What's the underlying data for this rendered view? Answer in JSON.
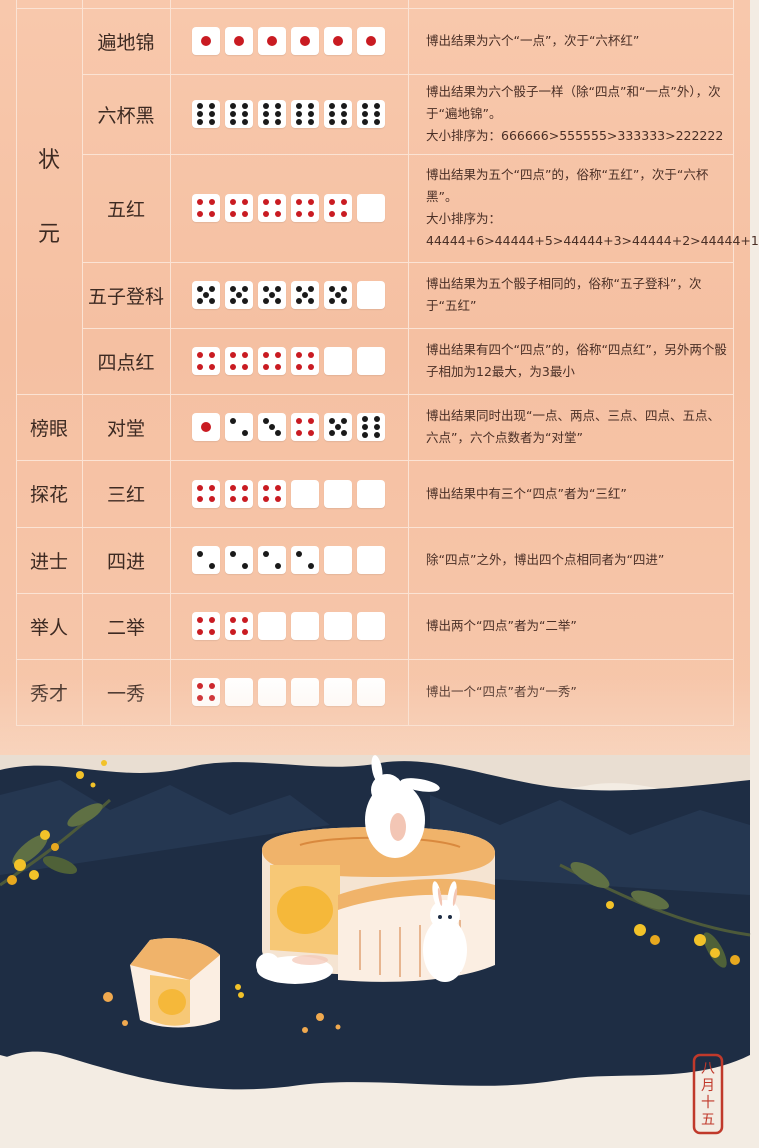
{
  "rows": [
    {
      "rank": "",
      "name": "遍地锦",
      "dice": [
        1,
        1,
        1,
        1,
        1,
        1
      ],
      "desc": [
        "博出结果为六个“一点”，次于“六杯红”"
      ]
    },
    {
      "rank": "",
      "name": "六杯黑",
      "dice": [
        6,
        6,
        6,
        6,
        6,
        6
      ],
      "desc": [
        "博出结果为六个骰子一样（除“四点”和“一点”外），次于“遍地锦”。",
        "大小排序为：666666>555555>333333>222222"
      ]
    },
    {
      "rank": "",
      "name": "五红",
      "dice": [
        4,
        4,
        4,
        4,
        4,
        0
      ],
      "desc": [
        "博出结果为五个“四点”的，俗称“五红”，次于“六杯黑”。",
        "大小排序为：",
        "44444+6>44444+5>44444+3>44444+2>44444+1"
      ]
    },
    {
      "rank": "",
      "name": "五子登科",
      "dice": [
        5,
        5,
        5,
        5,
        5,
        0
      ],
      "desc": [
        "博出结果为五个骰子相同的，俗称“五子登科”，次于“五红”"
      ]
    },
    {
      "rank": "",
      "name": "四点红",
      "dice": [
        4,
        4,
        4,
        4,
        0,
        0
      ],
      "desc": [
        "博出结果有四个“四点”的，俗称“四点红”，另外两个骰子相加为12最大，为3最小"
      ]
    },
    {
      "rank": "榜眼",
      "name": "对堂",
      "dice": [
        1,
        2,
        3,
        4,
        5,
        6
      ],
      "desc": [
        "博出结果同时出现“一点、两点、三点、四点、五点、六点”，六个点数者为“对堂”"
      ]
    },
    {
      "rank": "探花",
      "name": "三红",
      "dice": [
        4,
        4,
        4,
        0,
        0,
        0
      ],
      "desc": [
        "博出结果中有三个“四点”者为“三红”"
      ]
    },
    {
      "rank": "进士",
      "name": "四进",
      "dice": [
        2,
        2,
        2,
        2,
        0,
        0
      ],
      "desc": [
        "除“四点”之外，博出四个点相同者为“四进”"
      ]
    },
    {
      "rank": "举人",
      "name": "二举",
      "dice": [
        4,
        4,
        0,
        0,
        0,
        0
      ],
      "desc": [
        "博出两个“四点”者为“二举”"
      ]
    },
    {
      "rank": "秀才",
      "name": "一秀",
      "dice": [
        4,
        0,
        0,
        0,
        0,
        0
      ],
      "desc": [
        "博出一个“四点”者为“一秀”"
      ]
    }
  ],
  "zhuangyuan_label": [
    "状",
    "元"
  ],
  "seal_text": [
    "八",
    "月",
    "十",
    "五"
  ],
  "colors": {
    "panel": "#f6c3a6",
    "red_pip": "#c91b22",
    "black_pip": "#1a1a1a",
    "night": "#1e2d44",
    "cake": "#f0b36a"
  }
}
